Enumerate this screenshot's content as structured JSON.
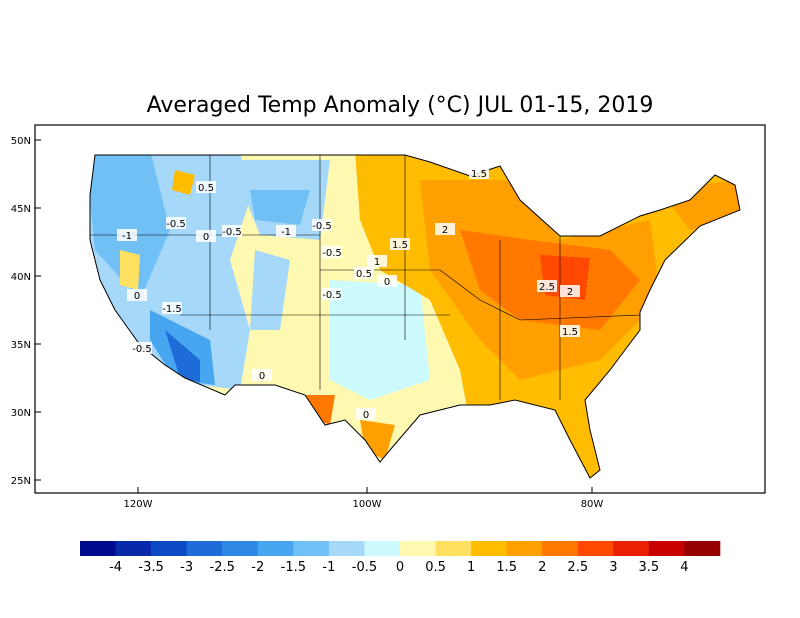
{
  "title": "Averaged Temp Anomaly (°C) JUL 01-15, 2019",
  "lat_labels": [
    "50N",
    "45N",
    "40N",
    "35N",
    "30N",
    "25N"
  ],
  "lon_labels": [
    "120W",
    "100W",
    "80W"
  ],
  "contour_labels": [
    0.5,
    -0.5,
    0,
    -0.5,
    -1,
    -0.5,
    -1,
    0,
    -1.5,
    -0.5,
    0,
    1.5,
    2,
    1.5,
    -0.5,
    0.5,
    1,
    -0.5,
    0,
    2.5,
    2,
    1.5,
    0
  ],
  "colorbar": {
    "colors": [
      "#000a8c",
      "#0a28aa",
      "#0c4ac4",
      "#1e6cd8",
      "#2e88e4",
      "#48a6f0",
      "#70c0f6",
      "#a6d8fa",
      "#ccfaff",
      "#fff8b0",
      "#ffe060",
      "#ffbc00",
      "#ffa000",
      "#ff7800",
      "#ff4800",
      "#ea2000",
      "#c80000",
      "#960000"
    ],
    "labels": [
      -4,
      -3.5,
      -3,
      -2.5,
      -2,
      -1.5,
      -1,
      -0.5,
      0,
      0.5,
      1,
      1.5,
      2,
      2.5,
      3,
      3.5,
      4
    ]
  }
}
